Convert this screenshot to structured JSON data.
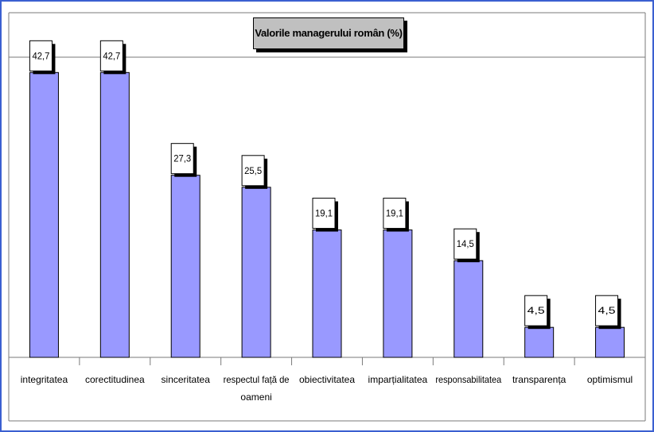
{
  "chart_data": {
    "type": "bar",
    "title": "Valorile managerului român (%)",
    "categories": [
      "integritatea",
      "corectitudinea",
      "sinceritatea",
      "respectul față de oameni",
      "obiectivitatea",
      "imparțialitatea",
      "responsabilitatea",
      "transparența",
      "optimismul"
    ],
    "category_lines": [
      [
        "integritatea"
      ],
      [
        "corectitudinea"
      ],
      [
        "sinceritatea"
      ],
      [
        "respectul față de",
        "oameni"
      ],
      [
        "obiectivitatea"
      ],
      [
        "imparțialitatea"
      ],
      [
        "responsabilitatea"
      ],
      [
        "transparența"
      ],
      [
        "optimismul"
      ]
    ],
    "values": [
      42.7,
      42.7,
      27.3,
      25.5,
      19.1,
      19.1,
      14.5,
      4.5,
      4.5
    ],
    "data_labels": [
      "42,7",
      "42,7",
      "27,3",
      "25,5",
      "19,1",
      "19,1",
      "14,5",
      "4,5",
      "4,5"
    ],
    "ylim": [
      0,
      45
    ],
    "xlabel": "",
    "ylabel": "",
    "grid": false,
    "bar_color": "#9999ff",
    "frame_color": "#3a5fd0"
  }
}
